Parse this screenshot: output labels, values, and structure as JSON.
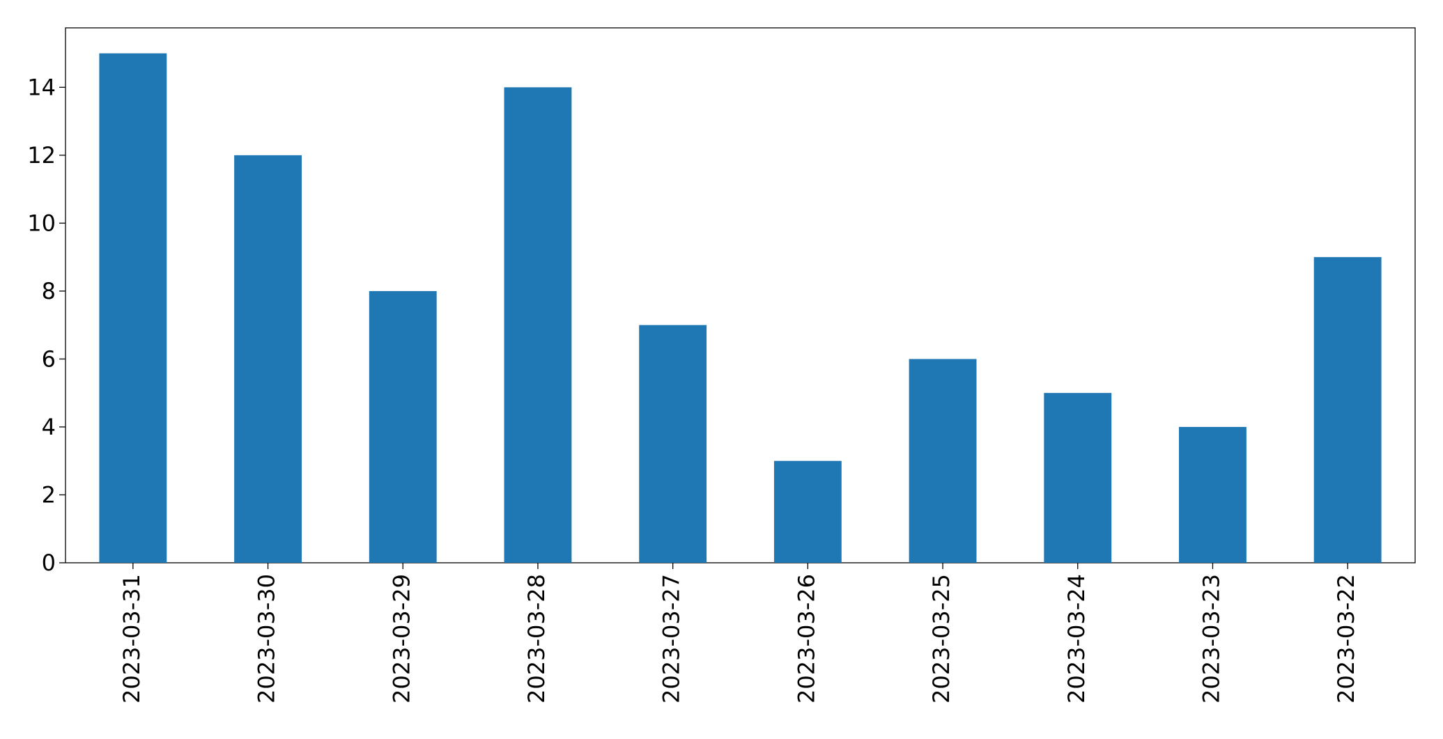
{
  "chart_data": {
    "type": "bar",
    "categories": [
      "2023-03-31",
      "2023-03-30",
      "2023-03-29",
      "2023-03-28",
      "2023-03-27",
      "2023-03-26",
      "2023-03-25",
      "2023-03-24",
      "2023-03-23",
      "2023-03-22"
    ],
    "values": [
      15,
      12,
      8,
      14,
      7,
      3,
      6,
      5,
      4,
      9
    ],
    "color": "#1f77b4",
    "ylim": [
      0,
      15.75
    ],
    "yticks": [
      0,
      2,
      4,
      6,
      8,
      10,
      12,
      14
    ],
    "grid": false
  }
}
